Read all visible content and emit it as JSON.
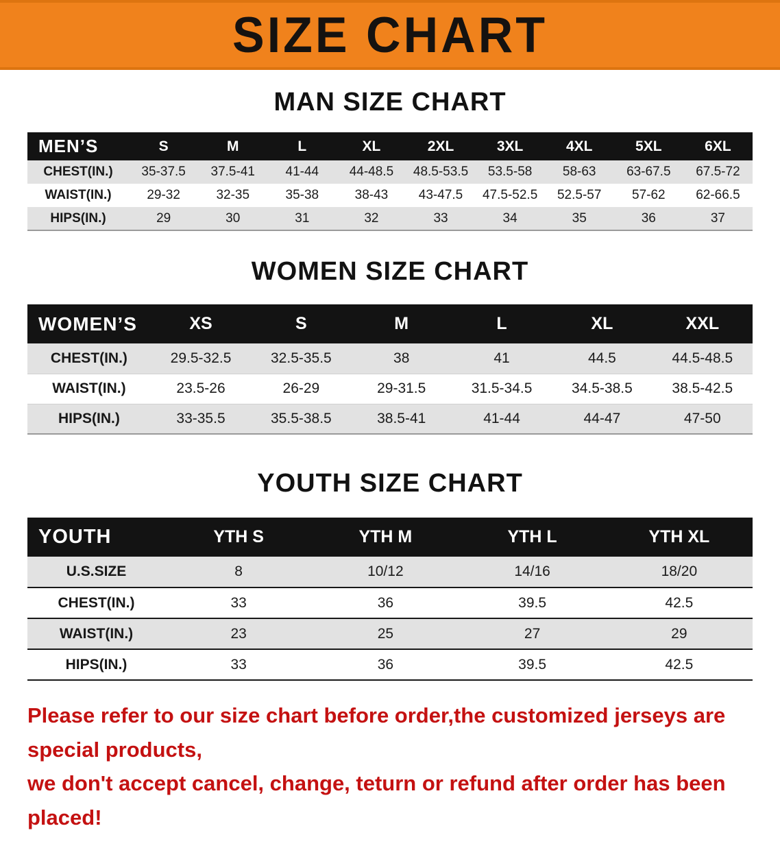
{
  "banner": {
    "title": "SIZE CHART",
    "bg_color": "#f0821c"
  },
  "sections": [
    {
      "id": "men",
      "heading": "MAN SIZE CHART",
      "header_label": "MEN’S",
      "columns": [
        "S",
        "M",
        "L",
        "XL",
        "2XL",
        "3XL",
        "4XL",
        "5XL",
        "6XL"
      ],
      "rows": [
        {
          "label": "CHEST(IN.)",
          "values": [
            "35-37.5",
            "37.5-41",
            "41-44",
            "44-48.5",
            "48.5-53.5",
            "53.5-58",
            "58-63",
            "63-67.5",
            "67.5-72"
          ]
        },
        {
          "label": "WAIST(IN.)",
          "values": [
            "29-32",
            "32-35",
            "35-38",
            "38-43",
            "43-47.5",
            "47.5-52.5",
            "52.5-57",
            "57-62",
            "62-66.5"
          ]
        },
        {
          "label": "HIPS(IN.)",
          "values": [
            "29",
            "30",
            "31",
            "32",
            "33",
            "34",
            "35",
            "36",
            "37"
          ]
        }
      ]
    },
    {
      "id": "women",
      "heading": "WOMEN SIZE CHART",
      "header_label": "WOMEN’S",
      "columns": [
        "XS",
        "S",
        "M",
        "L",
        "XL",
        "XXL"
      ],
      "rows": [
        {
          "label": "CHEST(IN.)",
          "values": [
            "29.5-32.5",
            "32.5-35.5",
            "38",
            "41",
            "44.5",
            "44.5-48.5"
          ]
        },
        {
          "label": "WAIST(IN.)",
          "values": [
            "23.5-26",
            "26-29",
            "29-31.5",
            "31.5-34.5",
            "34.5-38.5",
            "38.5-42.5"
          ]
        },
        {
          "label": "HIPS(IN.)",
          "values": [
            "33-35.5",
            "35.5-38.5",
            "38.5-41",
            "41-44",
            "44-47",
            "47-50"
          ]
        }
      ]
    },
    {
      "id": "youth",
      "heading": "YOUTH SIZE CHART",
      "header_label": "YOUTH",
      "columns": [
        "YTH S",
        "YTH M",
        "YTH L",
        "YTH XL"
      ],
      "rows": [
        {
          "label": "U.S.SIZE",
          "values": [
            "8",
            "10/12",
            "14/16",
            "18/20"
          ]
        },
        {
          "label": "CHEST(IN.)",
          "values": [
            "33",
            "36",
            "39.5",
            "42.5"
          ]
        },
        {
          "label": "WAIST(IN.)",
          "values": [
            "23",
            "25",
            "27",
            "29"
          ]
        },
        {
          "label": "HIPS(IN.)",
          "values": [
            "33",
            "36",
            "39.5",
            "42.5"
          ]
        }
      ]
    }
  ],
  "disclaimer": {
    "color": "#c41111",
    "line1": "Please refer to our size chart before order,the customized jerseys are special products,",
    "line2": "we don't accept cancel, change, teturn or refund after order has been placed!"
  }
}
